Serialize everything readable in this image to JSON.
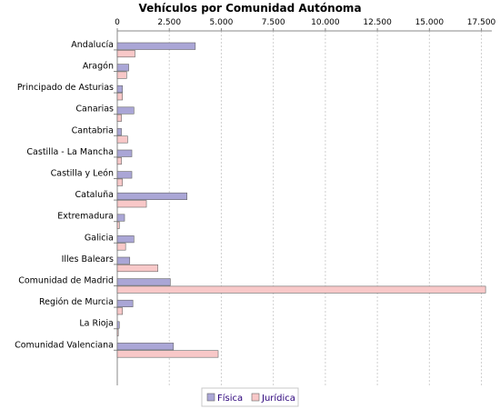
{
  "chart_data": {
    "type": "bar",
    "orientation": "horizontal",
    "title": "Vehículos por Comunidad Autónoma",
    "xlabel": "",
    "ylabel": "",
    "xlim": [
      0,
      18000
    ],
    "x_ticks": [
      0,
      2500,
      5000,
      7500,
      10000,
      12500,
      15000,
      17500
    ],
    "x_tick_labels": [
      "0",
      "2.500",
      "5.000",
      "7.500",
      "10.000",
      "12.500",
      "15.000",
      "17.500"
    ],
    "axis_position": "top",
    "grid": true,
    "legend_position": "bottom",
    "categories": [
      "Andalucía",
      "Aragón",
      "Principado de Asturias",
      "Canarias",
      "Cantabria",
      "Castilla - La Mancha",
      "Castilla y León",
      "Cataluña",
      "Extremadura",
      "Galicia",
      "Illes Balears",
      "Comunidad de Madrid",
      "Región de Murcia",
      "La Rioja",
      "Comunidad Valenciana"
    ],
    "series": [
      {
        "name": "Física",
        "color": "#aaa6d6",
        "values": [
          3750,
          550,
          250,
          800,
          200,
          700,
          700,
          3350,
          350,
          800,
          600,
          2550,
          750,
          100,
          2700
        ]
      },
      {
        "name": "Jurídica",
        "color": "#f8c8c8",
        "values": [
          850,
          450,
          250,
          200,
          500,
          200,
          250,
          1400,
          100,
          400,
          1950,
          17700,
          250,
          50,
          4850
        ]
      }
    ]
  }
}
